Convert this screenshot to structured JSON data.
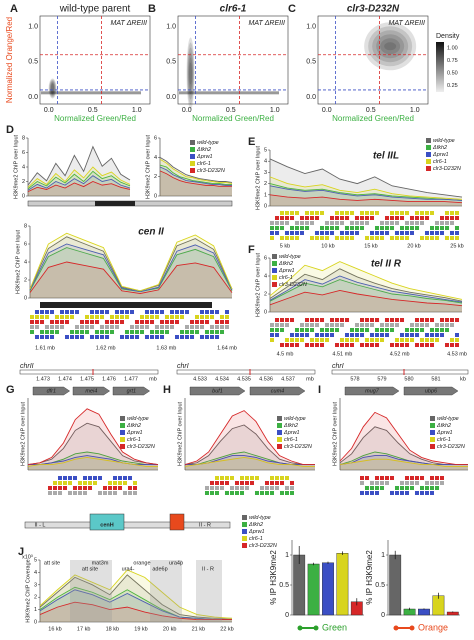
{
  "strains": [
    {
      "name": "wild-type",
      "color": "#666666"
    },
    {
      "name": "Δfkh2",
      "color": "#3cb043"
    },
    {
      "name": "Δprw1",
      "color": "#3b4fc4"
    },
    {
      "name": "clr6-1",
      "color": "#d8d41e"
    },
    {
      "name": "clr3-D232N",
      "color": "#d62728"
    }
  ],
  "scatter": {
    "y_label": "Normalized Orange/Red",
    "x_label": "Normalized Green/Red",
    "lim": [
      -0.1,
      1.15
    ],
    "ticks": [
      {
        "value": 0,
        "label": "0.0"
      },
      {
        "value": 0.5,
        "label": "0.5"
      },
      {
        "value": 1,
        "label": "1.0"
      }
    ],
    "blue_gate": 0.1,
    "red_gate": 0.6,
    "panels": [
      {
        "letter": "A",
        "title": "wild-type parent",
        "annotation": "MAT ΔREIII"
      },
      {
        "letter": "B",
        "title": "clr6-1",
        "annotation": "MAT ΔREIII"
      },
      {
        "letter": "C",
        "title": "clr3-D232N",
        "annotation": "MAT ΔREIII"
      }
    ],
    "density": {
      "label": "Density",
      "ticks": [
        {
          "value": 0.25,
          "label": "0.25"
        },
        {
          "value": 0.5,
          "label": "0.50"
        },
        {
          "value": 0.75,
          "label": "0.75"
        },
        {
          "value": 1,
          "label": "1.00"
        }
      ]
    }
  },
  "chip_label": "H3K9me2 ChIP over Input",
  "lines": {
    "D1": {
      "letter": "D",
      "ylim": [
        0,
        8
      ],
      "yticks": [
        0,
        2,
        4,
        6,
        8
      ],
      "traces": [
        [
          1.5,
          3.2,
          2.1,
          4.5,
          2.8,
          5.6,
          3.4,
          6.8,
          4.1,
          5.2,
          3.0,
          2.2
        ],
        [
          1.0,
          2.0,
          1.4,
          2.6,
          1.8,
          3.0,
          2.0,
          3.4,
          2.4,
          2.8,
          1.9,
          1.4
        ],
        [
          0.8,
          1.6,
          1.1,
          2.0,
          1.5,
          2.4,
          1.7,
          2.8,
          2.0,
          2.3,
          1.5,
          1.1
        ],
        [
          1.2,
          2.4,
          1.6,
          3.1,
          2.0,
          3.6,
          2.5,
          4.0,
          2.8,
          3.3,
          2.2,
          1.6
        ],
        [
          0.6,
          1.2,
          0.9,
          1.5,
          1.1,
          1.8,
          1.3,
          2.0,
          1.5,
          1.7,
          1.2,
          0.9
        ]
      ]
    },
    "D2": {
      "ylim": [
        0,
        6
      ],
      "yticks": [
        0,
        2,
        4,
        6
      ],
      "traces": [
        [
          4.0,
          3.6,
          3.0,
          2.6,
          2.2,
          2.0,
          1.8,
          1.7,
          1.6,
          1.5,
          1.5,
          1.4
        ],
        [
          3.2,
          3.0,
          2.4,
          2.0,
          1.8,
          1.6,
          1.5,
          1.4,
          1.3,
          1.3,
          1.2,
          1.2
        ],
        [
          3.0,
          2.7,
          2.2,
          1.9,
          1.6,
          1.5,
          1.4,
          1.3,
          1.2,
          1.2,
          1.1,
          1.1
        ],
        [
          3.8,
          3.4,
          2.8,
          2.4,
          2.0,
          1.9,
          1.7,
          1.6,
          1.5,
          1.4,
          1.4,
          1.3
        ],
        [
          2.6,
          2.3,
          1.9,
          1.6,
          1.4,
          1.3,
          1.2,
          1.1,
          1.1,
          1.0,
          1.0,
          1.0
        ]
      ]
    },
    "Dcen": {
      "region": "cen II",
      "ylim": [
        0,
        8
      ],
      "yticks": [
        0,
        2,
        4,
        6,
        8
      ],
      "coords": [
        "1.61 mb",
        "1.62 mb",
        "1.63 mb",
        "1.64 mb"
      ],
      "traces": [
        [
          1.0,
          5.5,
          6.8,
          6.0,
          5.2,
          1.2,
          0.8,
          1.4,
          5.8,
          6.6,
          5.4,
          1.0
        ],
        [
          0.8,
          4.6,
          5.6,
          5.0,
          4.4,
          1.0,
          0.7,
          1.1,
          4.8,
          5.4,
          4.6,
          0.8
        ],
        [
          0.9,
          5.0,
          6.0,
          5.4,
          4.8,
          1.1,
          0.7,
          1.2,
          5.2,
          5.9,
          5.0,
          0.9
        ],
        [
          1.0,
          6.0,
          7.2,
          6.4,
          5.6,
          1.3,
          0.8,
          1.5,
          6.2,
          7.0,
          5.8,
          1.0
        ],
        [
          0.6,
          3.4,
          4.0,
          3.6,
          3.2,
          0.8,
          0.5,
          0.9,
          3.6,
          3.9,
          3.4,
          0.6
        ]
      ]
    },
    "E": {
      "letter": "E",
      "region": "tel IIL",
      "ylim": [
        0,
        5
      ],
      "yticks": [
        0,
        1,
        2,
        3,
        4,
        5
      ],
      "coords": [
        "5 kb",
        "10 kb",
        "15 kb",
        "20 kb",
        "25 kb"
      ],
      "traces": [
        [
          4.2,
          3.5,
          2.9,
          3.3,
          2.4,
          2.0,
          2.6,
          1.8,
          1.5,
          1.2,
          1.0,
          0.8
        ],
        [
          2.0,
          1.6,
          1.4,
          1.5,
          1.2,
          1.0,
          1.1,
          0.9,
          0.8,
          0.7,
          0.6,
          0.5
        ],
        [
          1.8,
          1.5,
          1.3,
          1.4,
          1.1,
          0.9,
          1.0,
          0.8,
          0.7,
          0.6,
          0.6,
          0.5
        ],
        [
          2.6,
          2.0,
          1.7,
          1.9,
          1.4,
          1.2,
          1.5,
          1.1,
          0.9,
          0.8,
          0.7,
          0.6
        ],
        [
          1.0,
          0.8,
          0.7,
          0.8,
          0.6,
          0.5,
          0.6,
          0.5,
          0.4,
          0.4,
          0.4,
          0.3
        ]
      ]
    },
    "F": {
      "letter": "F",
      "region": "tel II R",
      "ylim": [
        0,
        6
      ],
      "yticks": [
        0,
        2,
        4,
        6
      ],
      "coords": [
        "4.5 mb",
        "4.51 mb",
        "4.52 mb",
        "4.53 mb"
      ],
      "traces": [
        [
          1.5,
          2.8,
          4.2,
          3.6,
          4.8,
          3.9,
          3.2,
          2.6,
          2.2,
          1.9,
          1.6,
          1.2
        ],
        [
          1.2,
          2.2,
          3.2,
          2.8,
          3.6,
          3.0,
          2.5,
          2.0,
          1.8,
          1.5,
          1.3,
          1.0
        ],
        [
          1.3,
          2.4,
          3.6,
          3.1,
          4.0,
          3.3,
          2.8,
          2.3,
          2.0,
          1.7,
          1.4,
          1.1
        ],
        [
          1.8,
          3.4,
          5.2,
          4.6,
          5.6,
          4.8,
          4.0,
          3.2,
          2.6,
          2.2,
          1.8,
          1.4
        ],
        [
          0.8,
          1.5,
          2.2,
          1.9,
          2.4,
          2.0,
          1.7,
          1.4,
          1.2,
          1.0,
          0.9,
          0.7
        ]
      ]
    },
    "G": {
      "letter": "G",
      "chromosome": "chrII",
      "coords": [
        "1.473",
        "1.474",
        "1.475",
        "1.476",
        "1.477",
        "mb"
      ],
      "genes": [
        "dfr1",
        "mei4",
        "grt1"
      ],
      "ylim": [
        0,
        4
      ],
      "traces": [
        [
          0.3,
          0.4,
          0.6,
          1.2,
          2.2,
          2.6,
          2.4,
          1.6,
          0.8,
          0.5,
          0.4,
          0.3
        ],
        [
          0.3,
          0.3,
          0.4,
          0.6,
          0.9,
          1.0,
          0.9,
          0.7,
          0.5,
          0.4,
          0.3,
          0.3
        ],
        [
          0.3,
          0.3,
          0.4,
          0.5,
          0.7,
          0.8,
          0.7,
          0.6,
          0.4,
          0.3,
          0.3,
          0.3
        ],
        [
          0.2,
          0.3,
          0.3,
          0.4,
          0.6,
          0.7,
          0.6,
          0.5,
          0.4,
          0.3,
          0.2,
          0.2
        ],
        [
          0.3,
          0.4,
          0.7,
          1.5,
          2.8,
          3.4,
          3.1,
          2.0,
          1.0,
          0.6,
          0.4,
          0.3
        ]
      ]
    },
    "H": {
      "letter": "H",
      "chromosome": "chrI",
      "coords": [
        "4.533",
        "4.534",
        "4.535",
        "4.536",
        "4.537",
        "mb"
      ],
      "genes": [
        "buf1",
        "cum4"
      ],
      "ylim": [
        0,
        4
      ],
      "traces": [
        [
          0.3,
          0.4,
          0.8,
          1.6,
          2.3,
          2.5,
          2.0,
          1.2,
          0.6,
          0.4,
          0.3,
          0.3
        ],
        [
          0.3,
          0.3,
          0.5,
          0.7,
          0.9,
          1.0,
          0.8,
          0.6,
          0.4,
          0.3,
          0.3,
          0.3
        ],
        [
          0.3,
          0.3,
          0.4,
          0.6,
          0.8,
          0.8,
          0.7,
          0.5,
          0.4,
          0.3,
          0.3,
          0.3
        ],
        [
          0.2,
          0.3,
          0.4,
          0.5,
          0.6,
          0.7,
          0.6,
          0.4,
          0.3,
          0.3,
          0.2,
          0.2
        ],
        [
          0.3,
          0.5,
          1.0,
          2.0,
          3.0,
          3.3,
          2.7,
          1.6,
          0.8,
          0.5,
          0.3,
          0.3
        ]
      ]
    },
    "I": {
      "letter": "I",
      "chromosome": "chrI",
      "coords": [
        "578",
        "579",
        "580",
        "581",
        "kb"
      ],
      "genes": [
        "mug7",
        "ubp6"
      ],
      "ylim": [
        0,
        4
      ],
      "traces": [
        [
          0.4,
          0.9,
          1.8,
          2.4,
          2.2,
          1.5,
          0.9,
          0.6,
          0.4,
          0.3,
          0.3,
          0.3
        ],
        [
          0.3,
          0.5,
          0.8,
          1.0,
          0.9,
          0.7,
          0.5,
          0.4,
          0.3,
          0.3,
          0.3,
          0.3
        ],
        [
          0.3,
          0.4,
          0.7,
          0.8,
          0.8,
          0.6,
          0.5,
          0.4,
          0.3,
          0.3,
          0.3,
          0.3
        ],
        [
          0.3,
          0.4,
          0.5,
          0.6,
          0.6,
          0.5,
          0.4,
          0.3,
          0.3,
          0.2,
          0.2,
          0.2
        ],
        [
          0.5,
          1.2,
          2.4,
          3.2,
          2.9,
          2.0,
          1.1,
          0.7,
          0.5,
          0.4,
          0.3,
          0.3
        ]
      ]
    },
    "J": {
      "letter": "J",
      "y_label": "H3K9me2 ChIP Coverage",
      "multiplier": "x10³",
      "ylim": [
        0,
        5
      ],
      "yticks": [
        0,
        1,
        2,
        3,
        4,
        5
      ],
      "coords": [
        "16 kb",
        "17 kb",
        "18 kb",
        "19 kb",
        "20 kb",
        "21 kb",
        "22 kb"
      ],
      "map_labels": [
        "II - L",
        "cenH",
        "II - R"
      ],
      "annotations": [
        "att site",
        "att site",
        "mat3m",
        "ura4-",
        "orange",
        "ade6p",
        "ura4p",
        "II - R"
      ],
      "traces": [
        [
          1.2,
          2.4,
          3.6,
          3.0,
          2.2,
          3.8,
          2.6,
          1.4,
          0.6,
          0.4,
          0.3,
          0.3
        ],
        [
          1.0,
          2.0,
          2.8,
          2.4,
          1.8,
          2.6,
          1.8,
          1.0,
          0.4,
          0.3,
          0.2,
          0.2
        ],
        [
          0.9,
          1.8,
          2.6,
          2.2,
          1.6,
          2.3,
          1.6,
          0.9,
          0.4,
          0.3,
          0.2,
          0.2
        ],
        [
          1.3,
          2.6,
          3.8,
          3.2,
          2.6,
          4.2,
          3.6,
          2.4,
          1.2,
          0.6,
          0.4,
          0.3
        ],
        [
          0.6,
          1.2,
          1.6,
          1.4,
          1.0,
          1.2,
          0.8,
          0.5,
          0.3,
          0.2,
          0.2,
          0.2
        ]
      ]
    }
  },
  "bars": {
    "y_label": "% IP H3K9me2",
    "ylim": [
      0,
      1.25
    ],
    "yticks": [
      0,
      0.5,
      1
    ],
    "groups": [
      {
        "label": "Green",
        "color": "#2ca02c",
        "values": [
          1.0,
          0.85,
          0.87,
          1.03,
          0.22
        ],
        "errors": [
          0.15,
          0.02,
          0.02,
          0.03,
          0.06
        ]
      },
      {
        "label": "Orange",
        "color": "#e8491d",
        "values": [
          1.0,
          0.1,
          0.1,
          0.32,
          0.05
        ],
        "errors": [
          0.07,
          0.02,
          0.01,
          0.05,
          0.01
        ]
      }
    ]
  }
}
